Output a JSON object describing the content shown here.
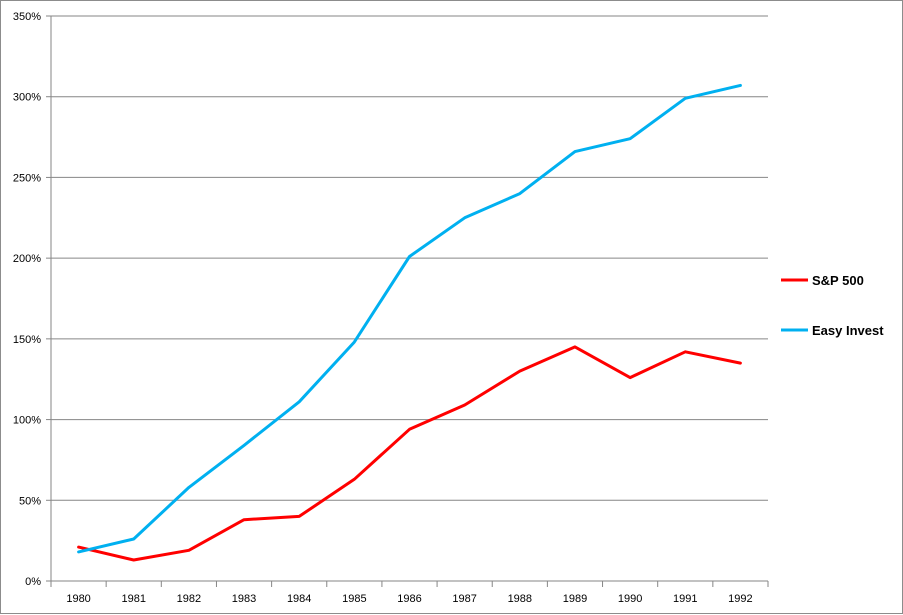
{
  "chart_data": {
    "type": "line",
    "title": "",
    "xlabel": "",
    "ylabel": "",
    "categories": [
      "1980",
      "1981",
      "1982",
      "1983",
      "1984",
      "1985",
      "1986",
      "1987",
      "1988",
      "1989",
      "1990",
      "1991",
      "1992"
    ],
    "ylim": [
      0,
      350
    ],
    "yticks": [
      0,
      50,
      100,
      150,
      200,
      250,
      300,
      350
    ],
    "ytick_labels": [
      "0%",
      "50%",
      "100%",
      "150%",
      "200%",
      "250%",
      "300%",
      "350%"
    ],
    "grid": "horizontal",
    "legend_position": "right",
    "series": [
      {
        "name": "S&P 500",
        "color": "#ff0000",
        "values": [
          21,
          13,
          19,
          38,
          40,
          63,
          94,
          109,
          130,
          145,
          126,
          142,
          135
        ]
      },
      {
        "name": "Easy Invest",
        "color": "#00b0f0",
        "values": [
          18,
          26,
          58,
          84,
          111,
          148,
          201,
          225,
          240,
          266,
          274,
          299,
          307
        ]
      }
    ]
  }
}
